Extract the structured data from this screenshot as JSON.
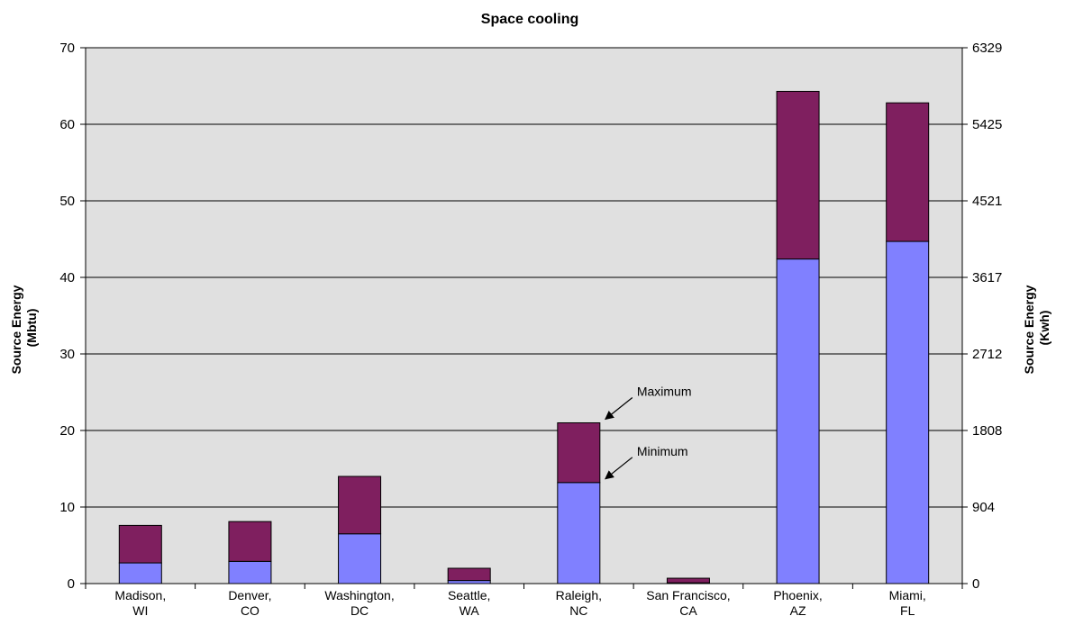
{
  "chart_data": {
    "type": "bar",
    "stacked": true,
    "title": "Space cooling",
    "ylabel_left": [
      "Source Energy",
      "(Mbtu)"
    ],
    "ylabel_right": [
      "Source Energy",
      "(Kwh)"
    ],
    "ylim": [
      0,
      70
    ],
    "yticks_left": [
      0,
      10,
      20,
      30,
      40,
      50,
      60,
      70
    ],
    "yticks_right": [
      "0",
      "904",
      "1808",
      "2712",
      "3617",
      "4521",
      "5425",
      "6329"
    ],
    "grid": true,
    "categories": [
      [
        "Madison,",
        "WI"
      ],
      [
        "Denver,",
        "CO"
      ],
      [
        "Washington,",
        "DC"
      ],
      [
        "Seattle,",
        "WA"
      ],
      [
        "Raleigh,",
        "NC"
      ],
      [
        "San Francisco,",
        "CA"
      ],
      [
        "Phoenix,",
        "AZ"
      ],
      [
        "Miami,",
        "FL"
      ]
    ],
    "minimum": [
      2.7,
      2.9,
      6.5,
      0.4,
      13.2,
      0.1,
      42.4,
      44.7
    ],
    "maximum": [
      7.6,
      8.1,
      14.0,
      2.0,
      21.0,
      0.7,
      64.3,
      62.8
    ],
    "colors": {
      "minimum": "#8080ff",
      "range": "#7f1f5f",
      "plot_bg": "#e0e0e0"
    },
    "annotations": [
      {
        "text": "Maximum",
        "category_index": 4,
        "points_to": "maximum"
      },
      {
        "text": "Minimum",
        "category_index": 4,
        "points_to": "minimum"
      }
    ]
  }
}
